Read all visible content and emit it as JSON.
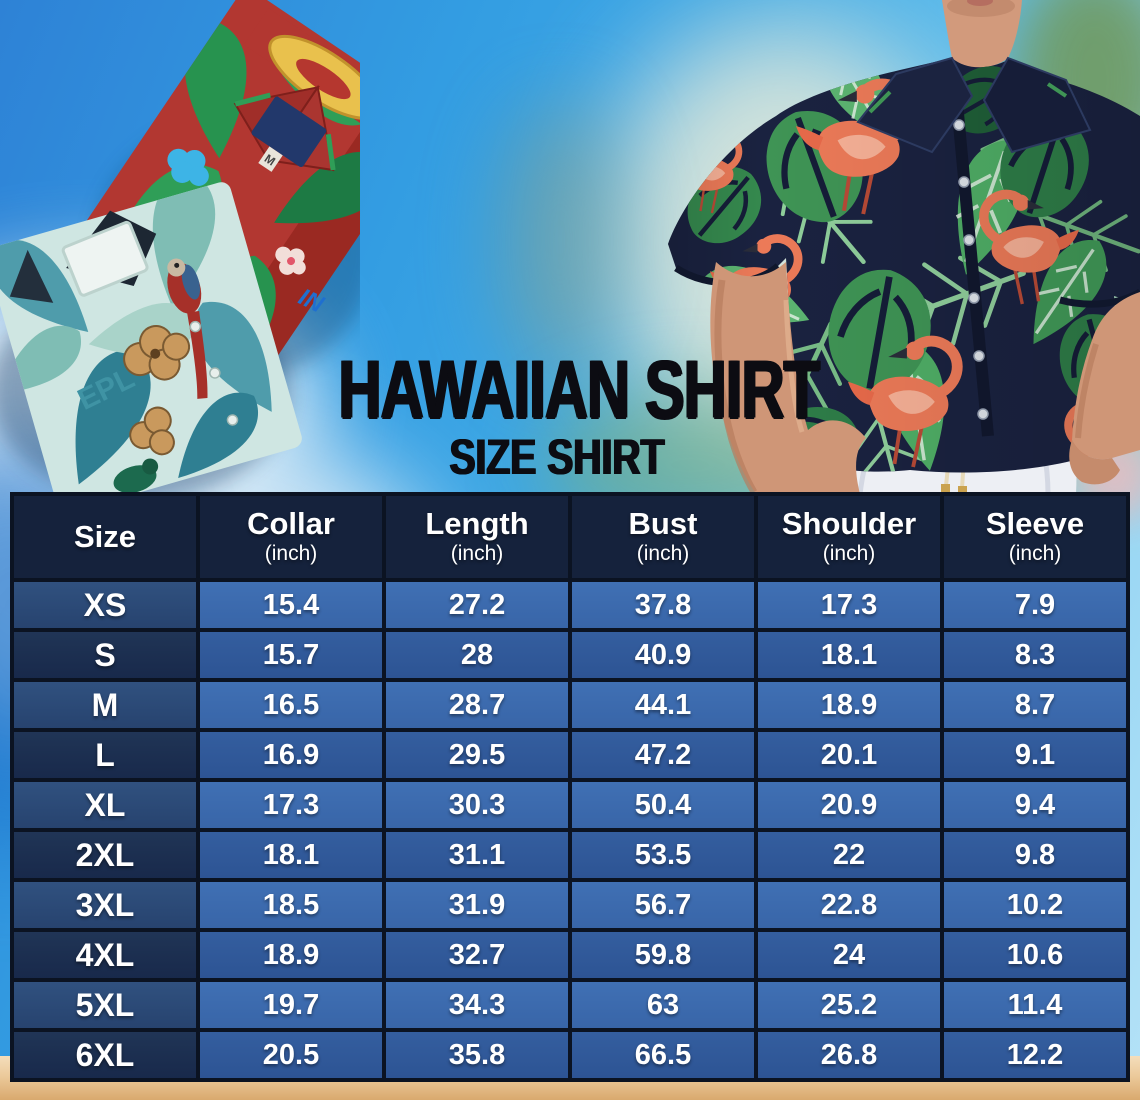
{
  "header": {
    "title": "HAWAIIAN SHIRT",
    "subtitle": "SIZE SHIRT"
  },
  "shirt_prints": {
    "teal_shirt_text": "EPL",
    "red_shirt_size_label": "M",
    "red_shirt_logo_text": "IN"
  },
  "chart_data": {
    "type": "table",
    "title": "HAWAIIAN SHIRT",
    "subtitle": "SIZE SHIRT",
    "columns": [
      {
        "label": "Size",
        "unit": ""
      },
      {
        "label": "Collar",
        "unit": "(inch)"
      },
      {
        "label": "Length",
        "unit": "(inch)"
      },
      {
        "label": "Bust",
        "unit": "(inch)"
      },
      {
        "label": "Shoulder",
        "unit": "(inch)"
      },
      {
        "label": "Sleeve",
        "unit": "(inch)"
      }
    ],
    "rows": [
      {
        "size": "XS",
        "values": [
          "15.4",
          "27.2",
          "37.8",
          "17.3",
          "7.9"
        ]
      },
      {
        "size": "S",
        "values": [
          "15.7",
          "28",
          "40.9",
          "18.1",
          "8.3"
        ]
      },
      {
        "size": "M",
        "values": [
          "16.5",
          "28.7",
          "44.1",
          "18.9",
          "8.7"
        ]
      },
      {
        "size": "L",
        "values": [
          "16.9",
          "29.5",
          "47.2",
          "20.1",
          "9.1"
        ]
      },
      {
        "size": "XL",
        "values": [
          "17.3",
          "30.3",
          "50.4",
          "20.9",
          "9.4"
        ]
      },
      {
        "size": "2XL",
        "values": [
          "18.1",
          "31.1",
          "53.5",
          "22",
          "9.8"
        ]
      },
      {
        "size": "3XL",
        "values": [
          "18.5",
          "31.9",
          "56.7",
          "22.8",
          "10.2"
        ]
      },
      {
        "size": "4XL",
        "values": [
          "18.9",
          "32.7",
          "59.8",
          "24",
          "10.6"
        ]
      },
      {
        "size": "5XL",
        "values": [
          "19.7",
          "34.3",
          "63",
          "25.2",
          "11.4"
        ]
      },
      {
        "size": "6XL",
        "values": [
          "20.5",
          "35.8",
          "66.5",
          "26.8",
          "12.2"
        ]
      }
    ]
  },
  "colors": {
    "header_bg": "#15223c",
    "row_light_size": "#2b4a7c",
    "row_light_value": "#3c6bae",
    "row_dark_size": "#1c3054",
    "row_dark_value": "#30599b",
    "grid_line": "#0b1322",
    "table_text": "#ffffff",
    "title_text": "#0c0c12",
    "sky": "#35a0e2",
    "sand": "#e3b67e"
  }
}
